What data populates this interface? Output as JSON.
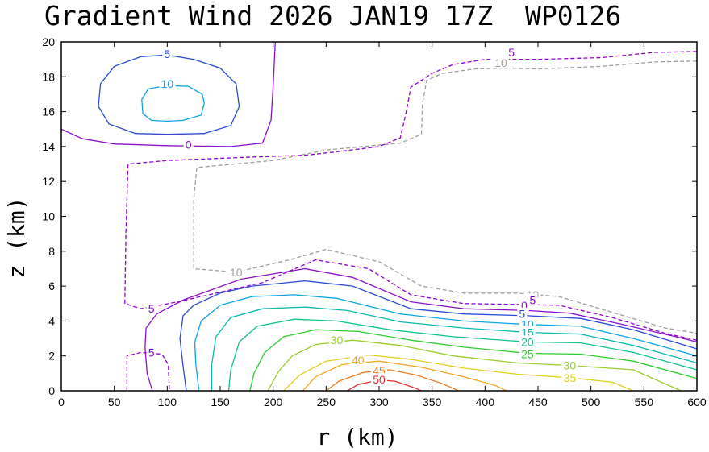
{
  "chart_data": {
    "type": "contour",
    "title": "Gradient Wind 2026 JAN19 17Z  WP0126",
    "xlabel": "r (km)",
    "ylabel": "z (km)",
    "xlim": [
      0,
      600
    ],
    "ylim": [
      0,
      20
    ],
    "xticks": [
      "0",
      "50",
      "100",
      "150",
      "200",
      "250",
      "300",
      "350",
      "400",
      "450",
      "500",
      "550",
      "600"
    ],
    "yticks": [
      "0",
      "2",
      "4",
      "6",
      "8",
      "10",
      "12",
      "14",
      "16",
      "18",
      "20"
    ],
    "grid": false,
    "legend": "none",
    "contours": [
      {
        "level": -10,
        "color": "#a0a0a0",
        "dash": true,
        "label": "10",
        "label_pos": [
          [
            415,
            18.8
          ],
          [
            165,
            6.8
          ],
          [
            445,
            5.5
          ]
        ],
        "paths": [
          [
            [
              600,
              18.9
            ],
            [
              560,
              18.85
            ],
            [
              510,
              18.6
            ],
            [
              450,
              18.45
            ],
            [
              420,
              18.5
            ],
            [
              390,
              18.45
            ],
            [
              360,
              18.2
            ],
            [
              345,
              17.8
            ],
            [
              341,
              16.5
            ],
            [
              340,
              14.7
            ],
            [
              320,
              14.2
            ],
            [
              250,
              13.8
            ],
            [
              200,
              13.2
            ],
            [
              128,
              12.8
            ],
            [
              125,
              11
            ],
            [
              125,
              7
            ],
            [
              165,
              6.8
            ],
            [
              215,
              7.5
            ],
            [
              250,
              8.1
            ],
            [
              300,
              7.4
            ],
            [
              340,
              6
            ],
            [
              380,
              5.6
            ],
            [
              430,
              5.6
            ],
            [
              470,
              5.4
            ],
            [
              520,
              4.5
            ],
            [
              570,
              3.6
            ],
            [
              600,
              3.3
            ]
          ]
        ]
      },
      {
        "level": -5,
        "color": "#9400d3",
        "dash": true,
        "label": "5",
        "label_pos": [
          [
            425,
            19.4
          ],
          [
            85,
            4.7
          ],
          [
            85,
            2.2
          ],
          [
            445,
            5.2
          ]
        ],
        "paths": [
          [
            [
              600,
              19.45
            ],
            [
              560,
              19.4
            ],
            [
              510,
              19.1
            ],
            [
              450,
              19.0
            ],
            [
              400,
              19.0
            ],
            [
              370,
              18.7
            ],
            [
              350,
              18.2
            ],
            [
              330,
              17.4
            ],
            [
              325,
              15.8
            ],
            [
              320,
              14.5
            ],
            [
              300,
              14.0
            ],
            [
              260,
              13.7
            ],
            [
              230,
              13.5
            ],
            [
              180,
              13.4
            ],
            [
              100,
              13.2
            ],
            [
              63,
              13
            ],
            [
              61,
              9
            ],
            [
              60,
              5
            ],
            [
              75,
              4.7
            ],
            [
              110,
              5.1
            ],
            [
              190,
              6.2
            ],
            [
              240,
              7.5
            ],
            [
              290,
              7.0
            ],
            [
              330,
              5.5
            ],
            [
              380,
              5.0
            ],
            [
              430,
              4.95
            ],
            [
              470,
              4.9
            ],
            [
              520,
              4.2
            ],
            [
              570,
              3.3
            ],
            [
              600,
              2.9
            ]
          ],
          [
            [
              62,
              0
            ],
            [
              62,
              2.0
            ],
            [
              75,
              2.2
            ],
            [
              95,
              2.1
            ],
            [
              101,
              1.5
            ],
            [
              102,
              0
            ]
          ]
        ]
      },
      {
        "level": 0,
        "color": "#8a12c7",
        "dash": false,
        "label": "0",
        "label_pos": [
          [
            120,
            14.1
          ],
          [
            437,
            4.9
          ]
        ],
        "paths": [
          [
            [
              0,
              15
            ],
            [
              20,
              14.45
            ],
            [
              50,
              14.15
            ],
            [
              100,
              14.05
            ],
            [
              160,
              14.0
            ],
            [
              190,
              14.2
            ],
            [
              198,
              15.5
            ],
            [
              200,
              17.5
            ],
            [
              202,
              20
            ]
          ],
          [
            [
              86,
              0
            ],
            [
              81,
              1.0
            ],
            [
              79,
              2.5
            ],
            [
              80,
              3.6
            ],
            [
              90,
              4.4
            ],
            [
              115,
              5.2
            ],
            [
              170,
              6.4
            ],
            [
              230,
              7.0
            ],
            [
              275,
              6.5
            ],
            [
              330,
              5.1
            ],
            [
              380,
              4.7
            ],
            [
              440,
              4.6
            ],
            [
              480,
              4.45
            ],
            [
              530,
              3.8
            ],
            [
              580,
              3.1
            ],
            [
              600,
              2.8
            ]
          ]
        ]
      },
      {
        "level": 5,
        "color": "#2b4bd6",
        "dash": false,
        "label": "5",
        "label_pos": [
          [
            100,
            19.3
          ],
          [
            435,
            4.4
          ]
        ],
        "paths": [
          [
            [
              100,
              19.25
            ],
            [
              125,
              19.0
            ],
            [
              150,
              18.5
            ],
            [
              165,
              17.6
            ],
            [
              168,
              16.3
            ],
            [
              160,
              15.2
            ],
            [
              135,
              14.75
            ],
            [
              100,
              14.7
            ],
            [
              70,
              14.75
            ],
            [
              45,
              15.3
            ],
            [
              35,
              16.3
            ],
            [
              37,
              17.6
            ],
            [
              50,
              18.6
            ],
            [
              75,
              19.15
            ],
            [
              100,
              19.25
            ]
          ],
          [
            [
              118,
              0
            ],
            [
              115,
              1.4
            ],
            [
              112,
              3.0
            ],
            [
              115,
              4.3
            ],
            [
              125,
              4.9
            ],
            [
              150,
              5.6
            ],
            [
              180,
              6.0
            ],
            [
              230,
              6.3
            ],
            [
              275,
              6.0
            ],
            [
              330,
              4.7
            ],
            [
              380,
              4.4
            ],
            [
              440,
              4.3
            ],
            [
              490,
              4.15
            ],
            [
              540,
              3.5
            ],
            [
              600,
              2.4
            ]
          ]
        ]
      },
      {
        "level": 10,
        "color": "#0ea5e6",
        "dash": false,
        "label": "10",
        "label_pos": [
          [
            100,
            17.6
          ],
          [
            440,
            3.8
          ]
        ],
        "paths": [
          [
            [
              100,
              17.5
            ],
            [
              120,
              17.45
            ],
            [
              133,
              17.0
            ],
            [
              135,
              16.5
            ],
            [
              132,
              15.8
            ],
            [
              115,
              15.5
            ],
            [
              100,
              15.45
            ],
            [
              85,
              15.5
            ],
            [
              77,
              15.9
            ],
            [
              76,
              16.7
            ],
            [
              82,
              17.3
            ],
            [
              100,
              17.5
            ]
          ],
          [
            [
              130,
              0
            ],
            [
              127,
              1.5
            ],
            [
              126,
              2.8
            ],
            [
              132,
              4.0
            ],
            [
              150,
              4.9
            ],
            [
              180,
              5.4
            ],
            [
              220,
              5.5
            ],
            [
              260,
              5.3
            ],
            [
              320,
              4.4
            ],
            [
              380,
              4.0
            ],
            [
              440,
              3.8
            ],
            [
              490,
              3.7
            ],
            [
              540,
              3.0
            ],
            [
              600,
              2.0
            ]
          ]
        ]
      },
      {
        "level": 15,
        "color": "#0ab8b0",
        "dash": false,
        "label": "15",
        "label_pos": [
          [
            440,
            3.35
          ]
        ],
        "paths": [
          [
            [
              142,
              0
            ],
            [
              142,
              1.5
            ],
            [
              146,
              3.1
            ],
            [
              160,
              4.2
            ],
            [
              190,
              4.7
            ],
            [
              230,
              4.8
            ],
            [
              270,
              4.6
            ],
            [
              320,
              3.95
            ],
            [
              380,
              3.6
            ],
            [
              440,
              3.35
            ],
            [
              490,
              3.25
            ],
            [
              540,
              2.6
            ],
            [
              600,
              1.6
            ]
          ]
        ]
      },
      {
        "level": 20,
        "color": "#12c28a",
        "dash": false,
        "label": "20",
        "label_pos": [
          [
            440,
            2.8
          ]
        ],
        "paths": [
          [
            [
              158,
              0
            ],
            [
              160,
              1.2
            ],
            [
              168,
              2.8
            ],
            [
              185,
              3.7
            ],
            [
              220,
              4.1
            ],
            [
              260,
              4.0
            ],
            [
              310,
              3.5
            ],
            [
              370,
              3.1
            ],
            [
              440,
              2.8
            ],
            [
              490,
              2.75
            ],
            [
              540,
              2.2
            ],
            [
              600,
              1.2
            ]
          ]
        ]
      },
      {
        "level": 25,
        "color": "#2ecc2e",
        "dash": false,
        "label": "25",
        "label_pos": [
          [
            440,
            2.1
          ]
        ],
        "paths": [
          [
            [
              178,
              0
            ],
            [
              182,
              1.0
            ],
            [
              192,
              2.2
            ],
            [
              210,
              3.1
            ],
            [
              240,
              3.5
            ],
            [
              280,
              3.4
            ],
            [
              330,
              2.9
            ],
            [
              380,
              2.5
            ],
            [
              440,
              2.15
            ],
            [
              490,
              2.1
            ],
            [
              540,
              1.7
            ],
            [
              600,
              0.7
            ]
          ]
        ]
      },
      {
        "level": 30,
        "color": "#9acd32",
        "dash": false,
        "label": "30",
        "label_pos": [
          [
            260,
            2.9
          ],
          [
            480,
            1.45
          ]
        ],
        "paths": [
          [
            [
              195,
              0
            ],
            [
              205,
              1.1
            ],
            [
              218,
              2.0
            ],
            [
              240,
              2.65
            ],
            [
              275,
              2.9
            ],
            [
              320,
              2.6
            ],
            [
              370,
              2.0
            ],
            [
              430,
              1.6
            ],
            [
              480,
              1.45
            ],
            [
              540,
              1.2
            ],
            [
              585,
              0
            ]
          ]
        ]
      },
      {
        "level": 35,
        "color": "#e0d020",
        "dash": false,
        "label": "35",
        "label_pos": [
          [
            480,
            0.75
          ]
        ],
        "paths": [
          [
            [
              210,
              0
            ],
            [
              225,
              0.9
            ],
            [
              250,
              1.7
            ],
            [
              290,
              2.05
            ],
            [
              330,
              1.8
            ],
            [
              380,
              1.3
            ],
            [
              430,
              0.95
            ],
            [
              480,
              0.75
            ],
            [
              520,
              0.5
            ],
            [
              540,
              0
            ]
          ]
        ]
      },
      {
        "level": 40,
        "color": "#f5a623",
        "dash": false,
        "label": "40",
        "label_pos": [
          [
            280,
            1.75
          ]
        ],
        "paths": [
          [
            [
              228,
              0
            ],
            [
              240,
              0.8
            ],
            [
              265,
              1.5
            ],
            [
              300,
              1.7
            ],
            [
              340,
              1.35
            ],
            [
              380,
              0.8
            ],
            [
              410,
              0.3
            ],
            [
              420,
              0
            ]
          ]
        ]
      },
      {
        "level": 45,
        "color": "#f07a20",
        "dash": false,
        "label": "45",
        "label_pos": [
          [
            300,
            1.15
          ]
        ],
        "paths": [
          [
            [
              250,
              0
            ],
            [
              262,
              0.55
            ],
            [
              285,
              1.05
            ],
            [
              310,
              1.2
            ],
            [
              335,
              0.9
            ],
            [
              360,
              0.4
            ],
            [
              375,
              0
            ]
          ]
        ]
      },
      {
        "level": 50,
        "color": "#e83030",
        "dash": false,
        "label": "50",
        "label_pos": [
          [
            300,
            0.65
          ]
        ],
        "paths": [
          [
            [
              270,
              0
            ],
            [
              280,
              0.35
            ],
            [
              300,
              0.62
            ],
            [
              315,
              0.55
            ],
            [
              332,
              0.2
            ],
            [
              340,
              0
            ]
          ]
        ]
      }
    ]
  }
}
